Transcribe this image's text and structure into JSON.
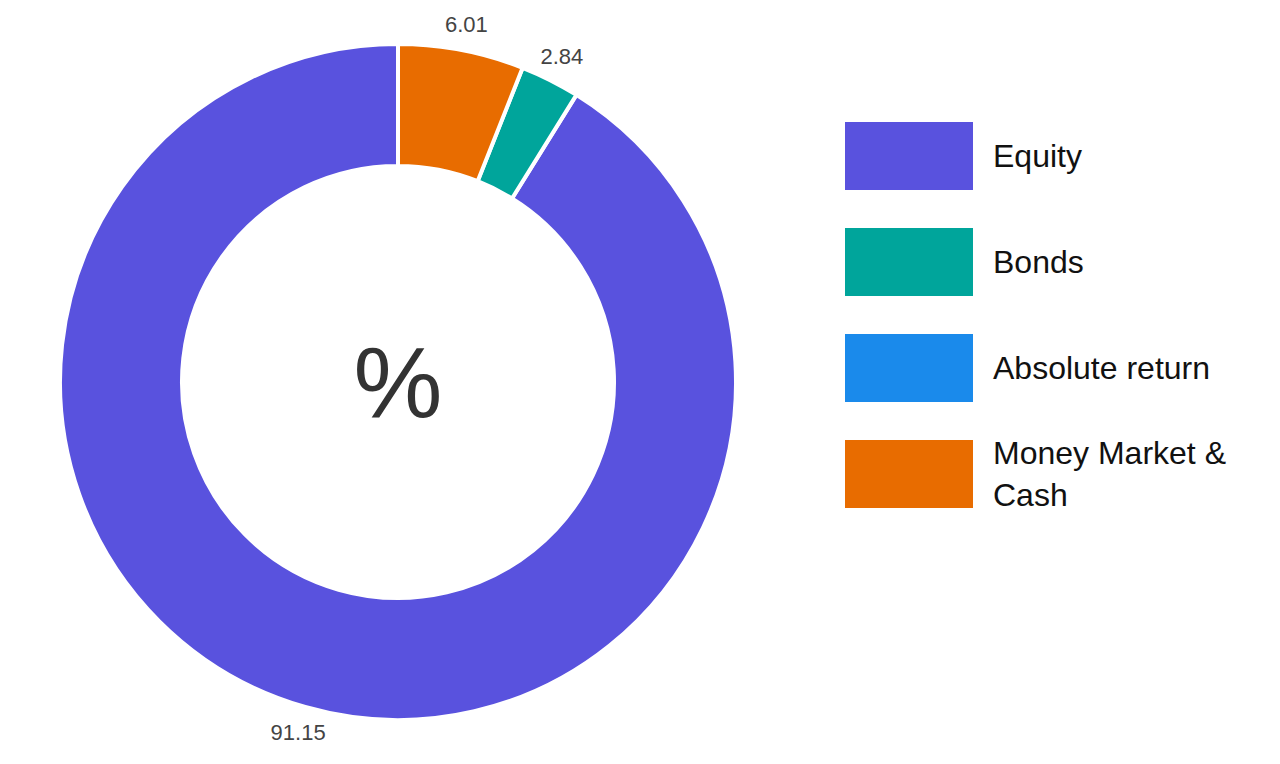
{
  "chart_data": {
    "type": "pie",
    "center_label": "%",
    "categories": [
      "Equity",
      "Bonds",
      "Absolute return",
      "Money Market & Cash"
    ],
    "values": [
      91.15,
      2.84,
      null,
      6.01
    ],
    "colors": [
      "#5952de",
      "#00a59b",
      "#1a8aeb",
      "#e86c00"
    ],
    "data_labels": true,
    "legend": "right"
  }
}
